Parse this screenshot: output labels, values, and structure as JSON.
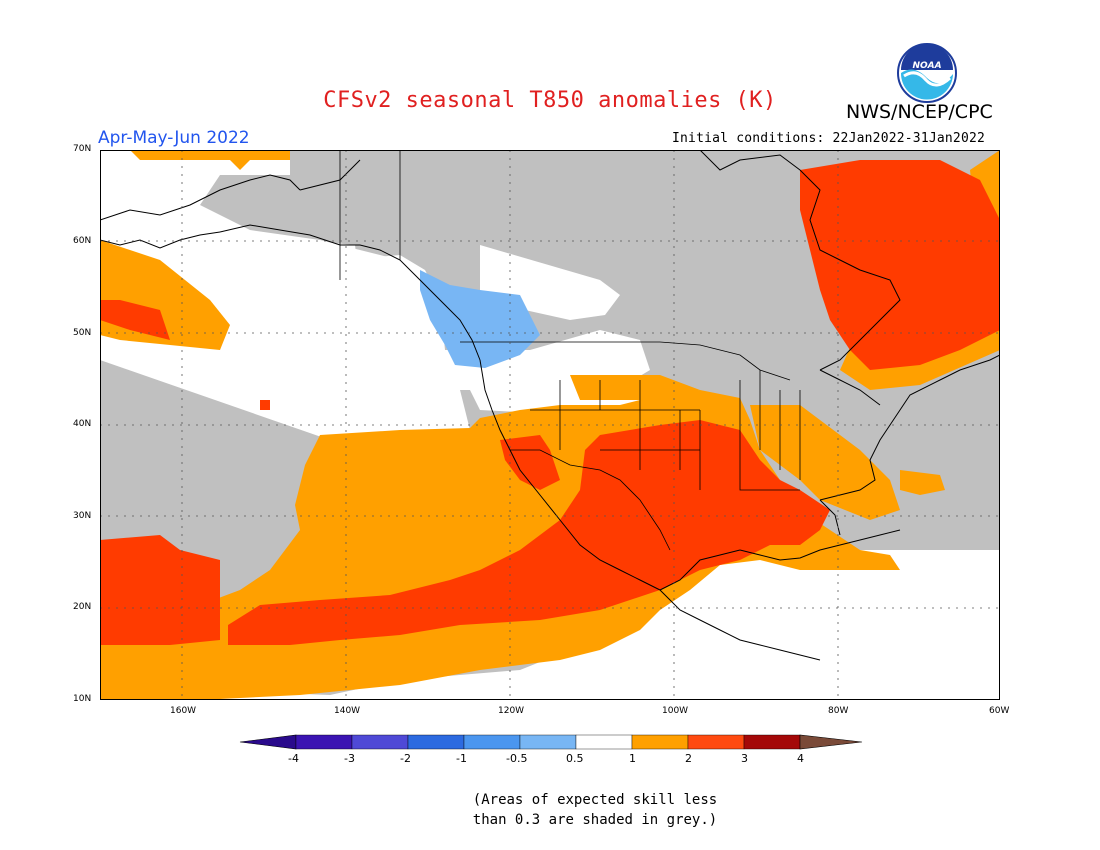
{
  "title": "CFSv2 seasonal T850 anomalies (K)",
  "organization": "NWS/NCEP/CPC",
  "logo_text": "NOAA",
  "season": "Apr-May-Jun 2022",
  "initial_conditions": "Initial conditions: 22Jan2022-31Jan2022",
  "map": {
    "lat_labels": [
      "70N",
      "60N",
      "50N",
      "40N",
      "30N",
      "20N",
      "10N"
    ],
    "lon_labels": [
      "160W",
      "140W",
      "120W",
      "100W",
      "80W",
      "60W"
    ]
  },
  "colorbar": {
    "labels": [
      "-4",
      "-3",
      "-2",
      "-1",
      "-0.5",
      "0.5",
      "1",
      "2",
      "3",
      "4"
    ],
    "colors": [
      "#3b14b2",
      "#4f49d6",
      "#2c6ae0",
      "#4b96ef",
      "#78b6f4",
      "#ffffff",
      "#ffa000",
      "#ff4a10",
      "#a40808",
      "#c8a08c",
      "#8c5a46",
      "#2a0a8c",
      "#7a4a38"
    ]
  },
  "note": [
    "(Areas of expected skill less",
    "than 0.3 are shaded in grey.)"
  ]
}
